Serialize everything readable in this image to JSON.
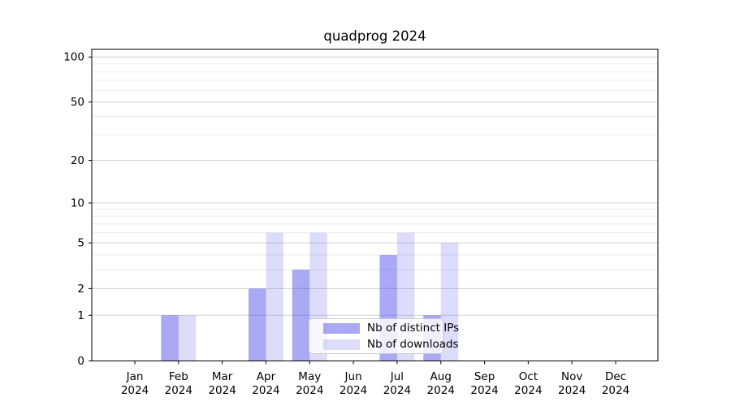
{
  "page": {
    "background": "#ffffff"
  },
  "chart_data": {
    "type": "bar",
    "title": "quadprog 2024",
    "categories": [
      "Jan",
      "Feb",
      "Mar",
      "Apr",
      "May",
      "Jun",
      "Jul",
      "Aug",
      "Sep",
      "Oct",
      "Nov",
      "Dec"
    ],
    "category_year": "2024",
    "series": [
      {
        "name": "Nb of distinct IPs",
        "values": [
          0,
          1,
          0,
          2,
          3,
          0,
          4,
          1,
          0,
          0,
          0,
          0
        ],
        "color": "rgba(64,64,232,0.45)"
      },
      {
        "name": "Nb of downloads",
        "values": [
          0,
          1,
          0,
          6,
          6,
          0,
          6,
          5,
          0,
          0,
          0,
          0
        ],
        "color": "rgba(64,64,232,0.18)"
      }
    ],
    "xlabel": "",
    "ylabel": "",
    "y_axis": {
      "scale": "log1p",
      "major_ticks": [
        0,
        1,
        2,
        5,
        10,
        20,
        50,
        100
      ],
      "minor_gridlines": [
        3,
        4,
        6,
        7,
        8,
        9,
        30,
        40,
        60,
        70,
        80,
        90
      ],
      "ylim": [
        0,
        100
      ]
    },
    "grid": true,
    "legend_position": "lower center",
    "colors": {
      "grid_major": "#d2d2d2",
      "grid_minor": "#ebebeb",
      "axis": "#000000",
      "text": "#000000",
      "legend_border": "#cccccc",
      "legend_bg": "rgba(255,255,255,0.8)"
    }
  }
}
